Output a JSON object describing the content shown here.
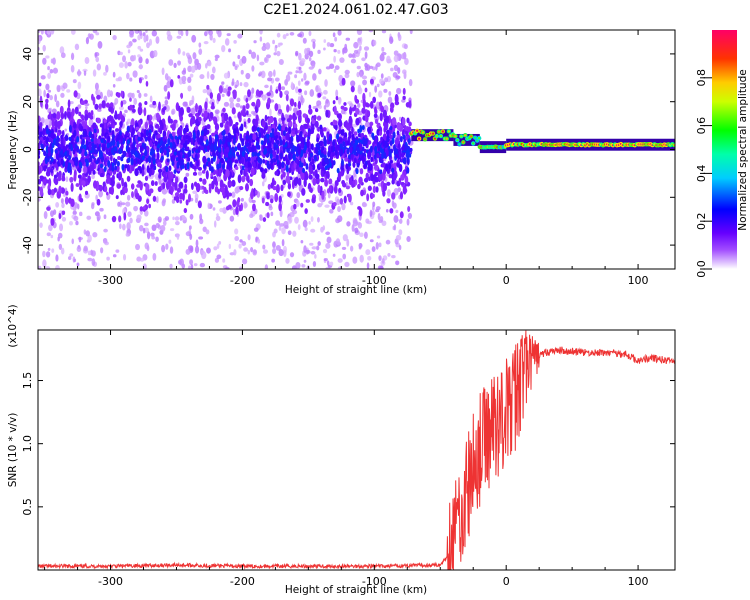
{
  "title": "C2E1.2024.061.02.47.G03",
  "chart_data": [
    {
      "type": "heatmap",
      "xlabel": "Height of straight line (km)",
      "ylabel": "Frequency (Hz)",
      "xlim": [
        -355,
        128
      ],
      "ylim": [
        -50,
        50
      ],
      "xticks": [
        -300,
        -200,
        -100,
        0,
        100
      ],
      "yticks": [
        -40,
        -20,
        0,
        20,
        40
      ],
      "colorbar": {
        "label": "Normalized spectral amplitude",
        "range": [
          0.0,
          1.0
        ],
        "ticks": [
          "0.0",
          "0.2",
          "0.4",
          "0.6",
          "0.8"
        ],
        "colormap": [
          "#ffffff",
          "#d9b3ff",
          "#8000ff",
          "#0000ff",
          "#00ffff",
          "#00ff00",
          "#ffff00",
          "#ff0000",
          "#ff0080"
        ]
      },
      "features": [
        {
          "x_range": [
            -355,
            -72
          ],
          "frequency_center": 0,
          "amplitude": 0.15,
          "description": "broad noisy band"
        },
        {
          "x_range": [
            -72,
            -40
          ],
          "frequency_center": 6,
          "amplitude": 0.85
        },
        {
          "x_range": [
            -40,
            -20
          ],
          "frequency_center": 4,
          "amplitude": 0.7
        },
        {
          "x_range": [
            -20,
            0
          ],
          "frequency_center": 1,
          "amplitude": 0.7
        },
        {
          "x_range": [
            0,
            128
          ],
          "frequency_center": 2,
          "amplitude": 0.9
        }
      ],
      "grid": false
    },
    {
      "type": "line",
      "xlabel": "Height of straight line (km)",
      "ylabel": "SNR (10 * v/v)",
      "scale_label": "(x10^4)",
      "xlim": [
        -355,
        128
      ],
      "ylim": [
        0,
        1.9
      ],
      "xticks": [
        -300,
        -200,
        -100,
        0,
        100
      ],
      "yticks": [
        0.5,
        1.0,
        1.5
      ],
      "ytick_labels": [
        "0.5",
        "1.0",
        "1.5"
      ],
      "series": [
        {
          "color": "#ee3333",
          "x": [
            -355,
            -300,
            -250,
            -200,
            -150,
            -100,
            -50,
            -45,
            -40,
            -35,
            -30,
            -25,
            -20,
            -15,
            -10,
            -5,
            0,
            5,
            10,
            15,
            20,
            25,
            30,
            40,
            50,
            60,
            70,
            80,
            90,
            100,
            110,
            120,
            128
          ],
          "y": [
            0.03,
            0.03,
            0.04,
            0.03,
            0.03,
            0.03,
            0.04,
            0.1,
            0.3,
            0.45,
            0.6,
            0.8,
            0.95,
            1.05,
            1.15,
            1.2,
            1.25,
            1.3,
            1.5,
            1.6,
            1.65,
            1.7,
            1.72,
            1.74,
            1.73,
            1.72,
            1.72,
            1.72,
            1.71,
            1.66,
            1.68,
            1.66,
            1.65
          ]
        }
      ],
      "grid": false
    }
  ],
  "colors": {
    "line": "#ee3333",
    "axes": "#000000"
  }
}
